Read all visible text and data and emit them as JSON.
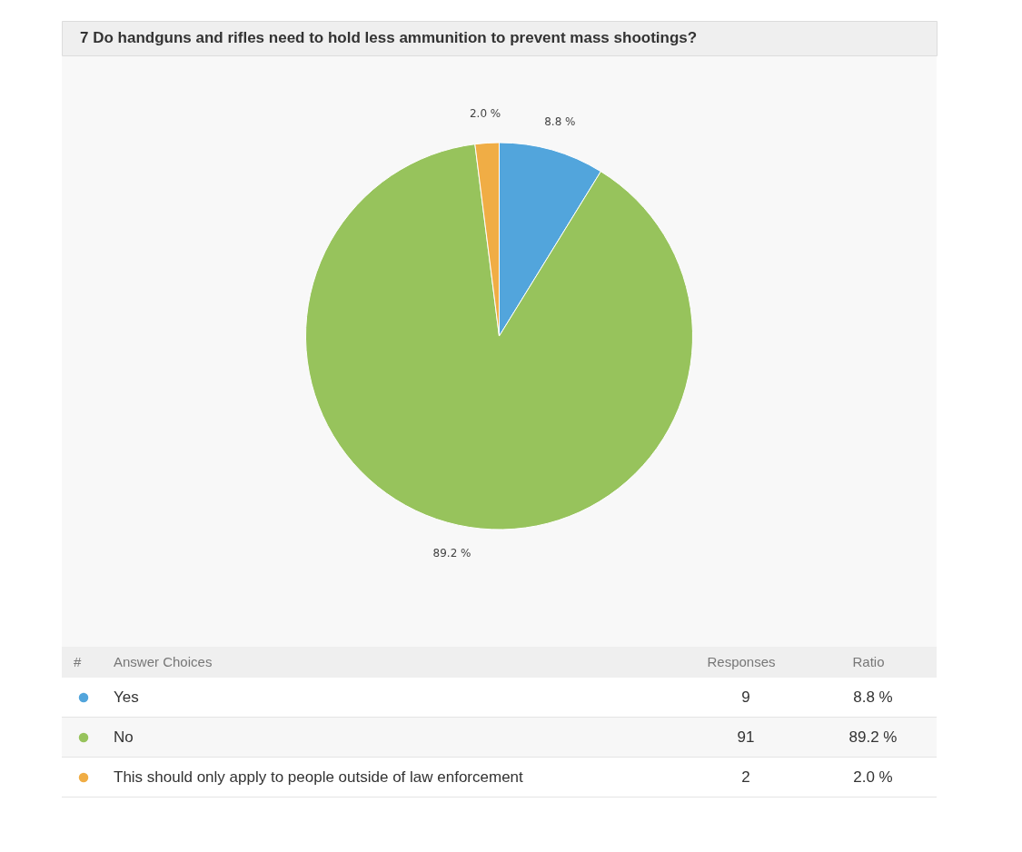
{
  "chart_data": {
    "type": "pie",
    "title": "7 Do handguns and rifles need to hold less ammunition to prevent mass shootings?",
    "categories": [
      "Yes",
      "No",
      "This should only apply to people outside of law enforcement"
    ],
    "values": [
      8.8,
      89.2,
      2.0
    ],
    "colors": [
      "#52a5dc",
      "#97c35c",
      "#f0ad45"
    ],
    "value_labels": [
      "8.8 %",
      "89.2 %",
      "2.0 %"
    ],
    "legend": "bottom",
    "legend_title": "Answer Choices",
    "annotations": [
      "#",
      "Responses",
      "Ratio",
      "9",
      "91",
      "2"
    ]
  }
}
